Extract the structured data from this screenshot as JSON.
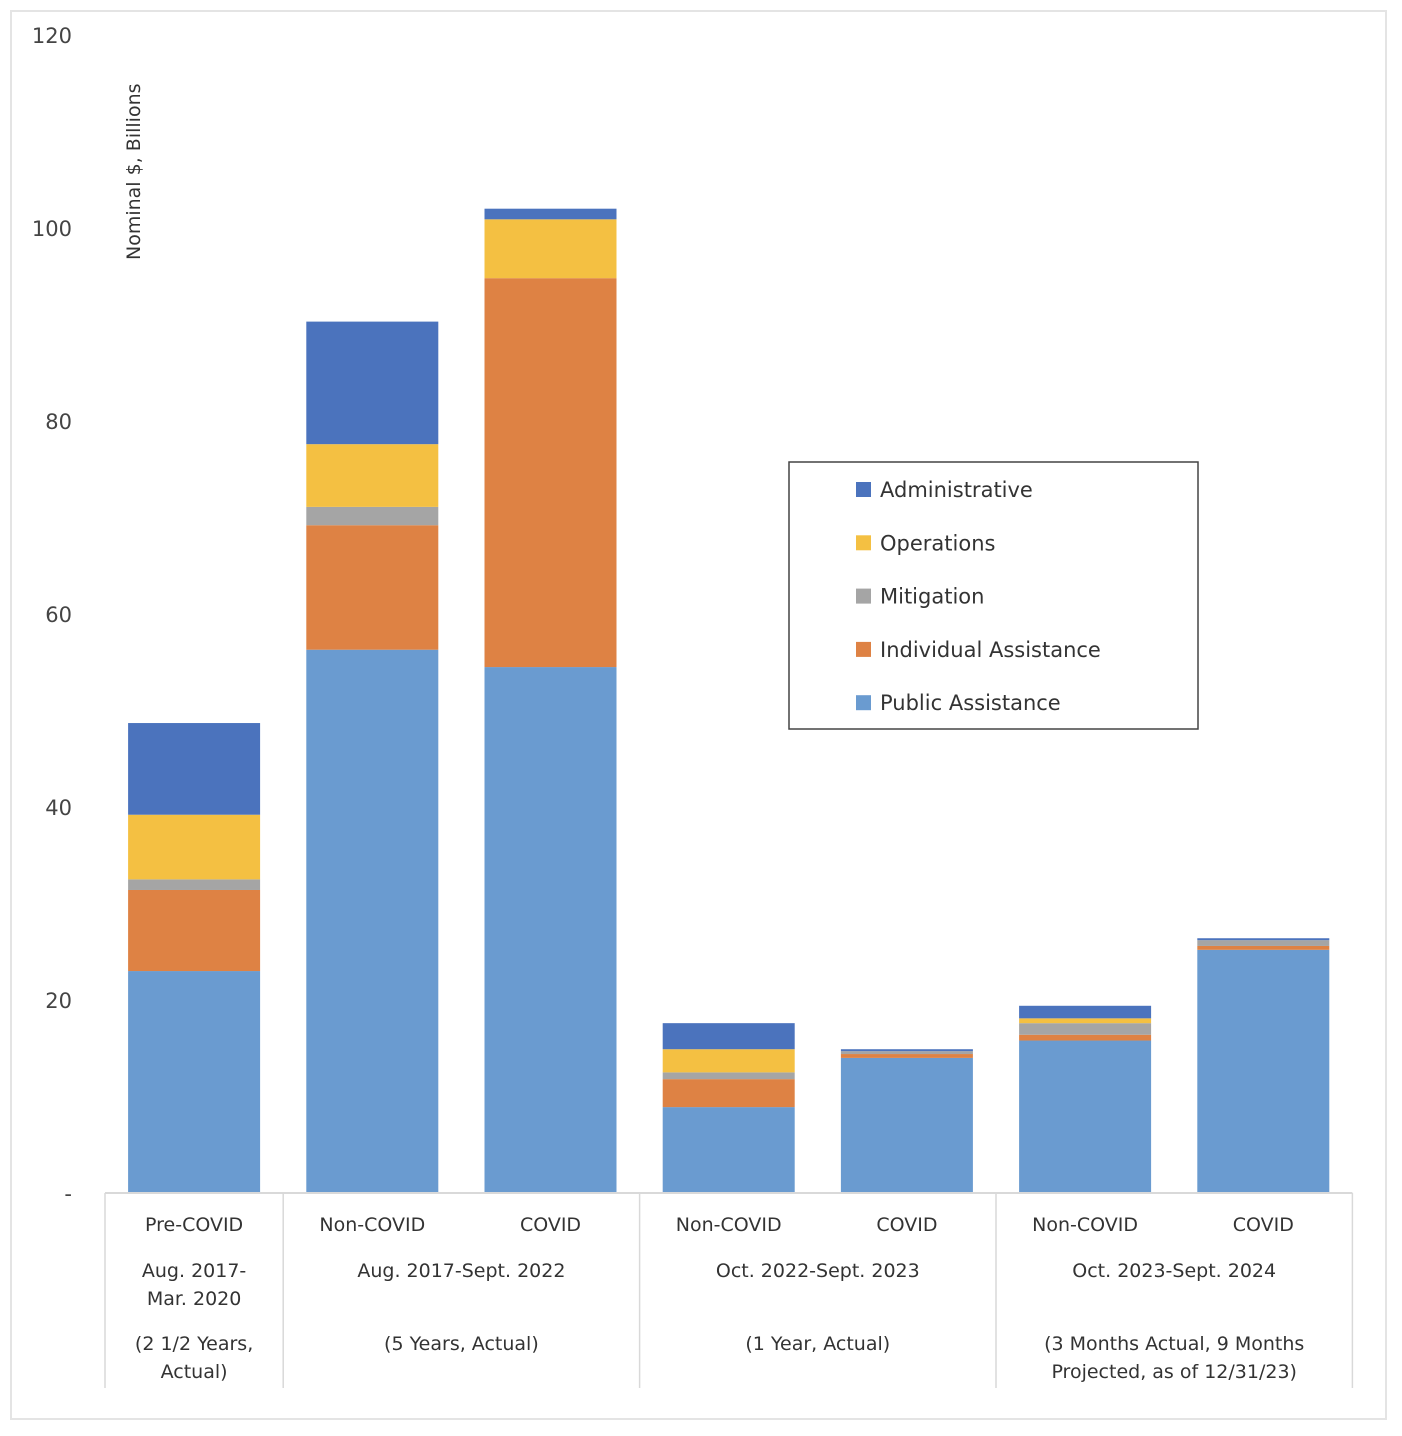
{
  "chart_data": {
    "type": "bar",
    "stacked": true,
    "title": "",
    "xlabel": "",
    "ylabel": "Nominal $, Billions",
    "ylim": [
      0,
      120
    ],
    "yticks": [
      0,
      20,
      40,
      60,
      80,
      100,
      120
    ],
    "ytick_labels": [
      "-",
      "20",
      "40",
      "60",
      "80",
      "100",
      "120"
    ],
    "grid": false,
    "legend_position": "center-right",
    "categories": [
      "Pre-COVID",
      "Non-COVID",
      "COVID",
      "Non-COVID",
      "COVID",
      "Non-COVID",
      "COVID"
    ],
    "groups": [
      {
        "label_lines": [
          "Aug. 2017-",
          "Mar. 2020"
        ],
        "note_lines": [
          "(2 1/2 Years,",
          "Actual)"
        ],
        "categories": [
          0
        ]
      },
      {
        "label_lines": [
          "Aug. 2017-Sept. 2022"
        ],
        "note_lines": [
          "(5 Years, Actual)"
        ],
        "categories": [
          1,
          2
        ]
      },
      {
        "label_lines": [
          "Oct. 2022-Sept. 2023"
        ],
        "note_lines": [
          "(1 Year, Actual)"
        ],
        "categories": [
          3,
          4
        ]
      },
      {
        "label_lines": [
          "Oct. 2023-Sept. 2024"
        ],
        "note_lines": [
          "(3 Months Actual, 9 Months",
          "Projected, as of 12/31/23)"
        ],
        "categories": [
          5,
          6
        ]
      }
    ],
    "series": [
      {
        "name": "Public Assistance",
        "color": "#6a9bd0",
        "values": [
          23.0,
          56.3,
          54.5,
          8.9,
          14.0,
          15.8,
          25.2
        ]
      },
      {
        "name": "Individual Assistance",
        "color": "#de8244",
        "values": [
          8.4,
          12.9,
          40.3,
          2.9,
          0.4,
          0.6,
          0.4
        ]
      },
      {
        "name": "Mitigation",
        "color": "#a5a5a5",
        "values": [
          1.1,
          1.9,
          0.0,
          0.7,
          0.3,
          1.2,
          0.6
        ]
      },
      {
        "name": "Operations",
        "color": "#f4c042",
        "values": [
          6.7,
          6.5,
          6.1,
          2.4,
          0.0,
          0.5,
          0.0
        ]
      },
      {
        "name": "Administrative",
        "color": "#4b73bd",
        "values": [
          9.5,
          12.7,
          1.1,
          2.7,
          0.2,
          1.3,
          0.2
        ]
      }
    ],
    "legend_order": [
      "Administrative",
      "Operations",
      "Mitigation",
      "Individual Assistance",
      "Public Assistance"
    ]
  }
}
